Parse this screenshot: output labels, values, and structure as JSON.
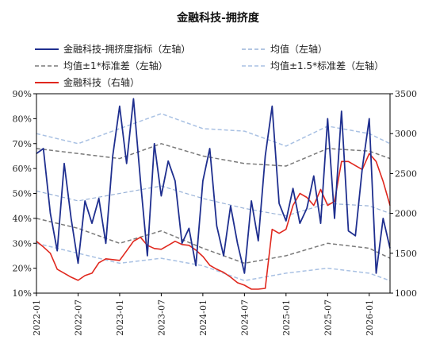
{
  "chart_data": {
    "type": "line",
    "title": "金融科技-拥挤度",
    "colors": {
      "crowding": "#1f2f8f",
      "mean": "#9ab3d8",
      "band1": "#7a7a7a",
      "band15": "#a9c1e3",
      "fintech": "#e0281e"
    },
    "left_axis": {
      "ylim": [
        10,
        90
      ],
      "ticks": [
        "10%",
        "20%",
        "30%",
        "40%",
        "50%",
        "60%",
        "70%",
        "80%",
        "90%"
      ]
    },
    "right_axis": {
      "ylim": [
        1000,
        3500
      ],
      "ticks": [
        "1000",
        "1500",
        "2000",
        "2500",
        "3000",
        "3500"
      ]
    },
    "x_axis": {
      "range": [
        "2022-01",
        "2026-04"
      ],
      "ticks": [
        "2022-01",
        "2022-07",
        "2023-01",
        "2023-07",
        "2024-01",
        "2024-07",
        "2025-01",
        "2025-07",
        "2026-01"
      ]
    },
    "legend": [
      {
        "key": "crowding",
        "label": "金融科技-拥挤度指标（左轴）",
        "style": "solid"
      },
      {
        "key": "mean",
        "label": "均值（左轴）",
        "style": "dashed"
      },
      {
        "key": "band1",
        "label": "均值±1*标准差（左轴）",
        "style": "dashed"
      },
      {
        "key": "band15",
        "label": "均值±1.5*标准差（左轴）",
        "style": "dashed"
      },
      {
        "key": "fintech",
        "label": "金融科技（右轴）",
        "style": "solid"
      }
    ],
    "series": [
      {
        "key": "crowding",
        "axis": "left",
        "x": [
          "2022-01",
          "2022-02",
          "2022-03",
          "2022-04",
          "2022-05",
          "2022-06",
          "2022-07",
          "2022-08",
          "2022-09",
          "2022-10",
          "2022-11",
          "2022-12",
          "2023-01",
          "2023-02",
          "2023-03",
          "2023-04",
          "2023-05",
          "2023-06",
          "2023-07",
          "2023-08",
          "2023-09",
          "2023-10",
          "2023-11",
          "2023-12",
          "2024-01",
          "2024-02",
          "2024-03",
          "2024-04",
          "2024-05",
          "2024-06",
          "2024-07",
          "2024-08",
          "2024-09",
          "2024-10",
          "2024-11",
          "2024-12",
          "2025-01",
          "2025-02",
          "2025-03",
          "2025-04",
          "2025-05",
          "2025-06",
          "2025-07",
          "2025-08",
          "2025-09",
          "2025-10",
          "2025-11",
          "2025-12",
          "2026-01",
          "2026-02",
          "2026-03",
          "2026-04"
        ],
        "values": [
          66,
          68,
          42,
          27,
          62,
          40,
          22,
          47,
          38,
          48,
          30,
          65,
          85,
          62,
          88,
          55,
          25,
          70,
          49,
          63,
          55,
          30,
          36,
          21,
          55,
          68,
          37,
          25,
          45,
          30,
          18,
          47,
          31,
          65,
          85,
          46,
          39,
          52,
          38,
          44,
          57,
          38,
          80,
          40,
          83,
          35,
          33,
          60,
          80,
          18,
          40,
          28
        ]
      },
      {
        "key": "mean_line",
        "axis": "left",
        "x": [
          "2022-01",
          "2022-07",
          "2023-01",
          "2023-07",
          "2024-01",
          "2024-07",
          "2025-01",
          "2025-07",
          "2026-01",
          "2026-04"
        ],
        "values": [
          51,
          47,
          50,
          53,
          48,
          44,
          41,
          46,
          45,
          42
        ]
      },
      {
        "key": "band1_upper",
        "axis": "left",
        "x": [
          "2022-01",
          "2022-07",
          "2023-01",
          "2023-07",
          "2024-01",
          "2024-07",
          "2025-01",
          "2025-07",
          "2026-01",
          "2026-04"
        ],
        "values": [
          68,
          66,
          64,
          70,
          65,
          62,
          61,
          68,
          67,
          64
        ]
      },
      {
        "key": "band1_lower",
        "axis": "left",
        "x": [
          "2022-01",
          "2022-07",
          "2023-01",
          "2023-07",
          "2024-01",
          "2024-07",
          "2025-01",
          "2025-07",
          "2026-01",
          "2026-04"
        ],
        "values": [
          40,
          36,
          30,
          35,
          28,
          22,
          25,
          30,
          28,
          24
        ]
      },
      {
        "key": "band15_upper",
        "axis": "left",
        "x": [
          "2022-01",
          "2022-07",
          "2023-01",
          "2023-07",
          "2024-01",
          "2024-07",
          "2025-01",
          "2025-07",
          "2026-01",
          "2026-04"
        ],
        "values": [
          74,
          70,
          76,
          82,
          76,
          75,
          69,
          77,
          74,
          70
        ]
      },
      {
        "key": "band15_lower",
        "axis": "left",
        "x": [
          "2022-01",
          "2022-07",
          "2023-01",
          "2023-07",
          "2024-01",
          "2024-07",
          "2025-01",
          "2025-07",
          "2026-01",
          "2026-04"
        ],
        "values": [
          30,
          26,
          22,
          24,
          21,
          15,
          18,
          20,
          18,
          15
        ]
      },
      {
        "key": "fintech",
        "axis": "right",
        "x": [
          "2022-01",
          "2022-02",
          "2022-03",
          "2022-04",
          "2022-05",
          "2022-06",
          "2022-07",
          "2022-08",
          "2022-09",
          "2022-10",
          "2022-11",
          "2022-12",
          "2023-01",
          "2023-02",
          "2023-03",
          "2023-04",
          "2023-05",
          "2023-06",
          "2023-07",
          "2023-08",
          "2023-09",
          "2023-10",
          "2023-11",
          "2023-12",
          "2024-01",
          "2024-02",
          "2024-03",
          "2024-04",
          "2024-05",
          "2024-06",
          "2024-07",
          "2024-08",
          "2024-09",
          "2024-10",
          "2024-11",
          "2024-12",
          "2025-01",
          "2025-02",
          "2025-03",
          "2025-04",
          "2025-05",
          "2025-06",
          "2025-07",
          "2025-08",
          "2025-09",
          "2025-10",
          "2025-11",
          "2025-12",
          "2026-01",
          "2026-02",
          "2026-03",
          "2026-04"
        ],
        "values": [
          1650,
          1580,
          1500,
          1300,
          1250,
          1200,
          1160,
          1220,
          1250,
          1380,
          1430,
          1420,
          1410,
          1530,
          1650,
          1700,
          1600,
          1560,
          1550,
          1600,
          1650,
          1610,
          1600,
          1540,
          1460,
          1350,
          1300,
          1260,
          1200,
          1130,
          1100,
          1050,
          1050,
          1060,
          1800,
          1750,
          1800,
          2100,
          2250,
          2200,
          2100,
          2300,
          2100,
          2150,
          2650,
          2650,
          2600,
          2550,
          2750,
          2650,
          2400,
          2100
        ]
      }
    ]
  }
}
